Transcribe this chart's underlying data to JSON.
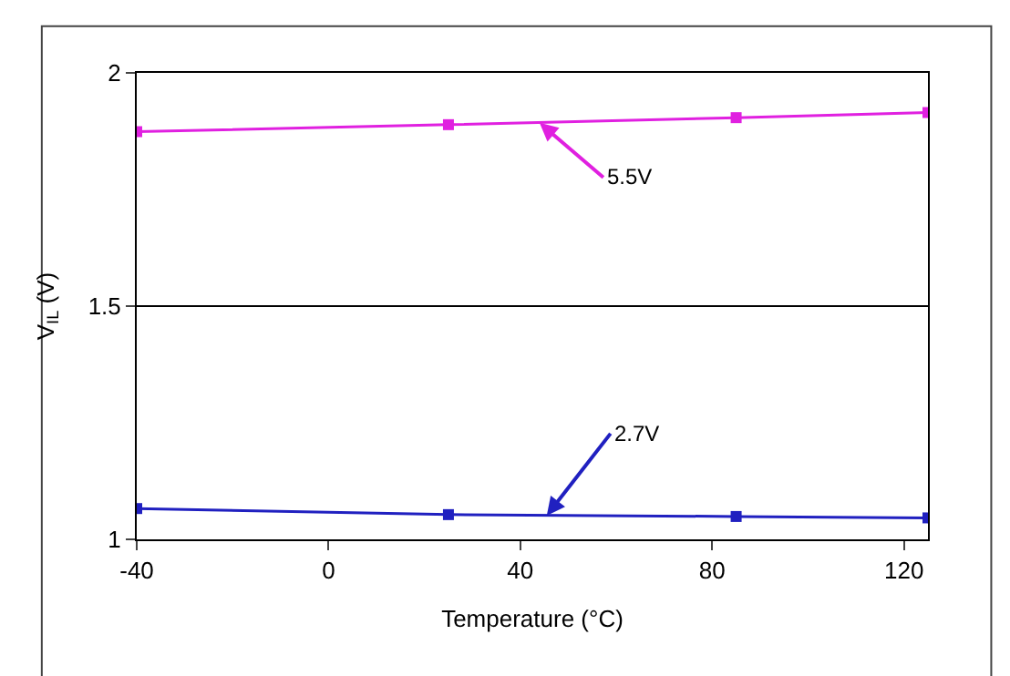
{
  "chart_data": {
    "type": "line",
    "xlabel": "Temperature (°C)",
    "ylabel": "V$_{IL}$ (V)",
    "x": [
      -40,
      25,
      85,
      125
    ],
    "series": [
      {
        "color": "#e020e0",
        "values": [
          1.874,
          1.889,
          1.904,
          1.915
        ]
      },
      {
        "color": "#2020c0",
        "values": [
          1.066,
          1.053,
          1.049,
          1.046
        ]
      }
    ],
    "xlim": [
      -40,
      125
    ],
    "xticks": [
      -40,
      0,
      40,
      80,
      120
    ],
    "ylim": [
      1,
      2
    ],
    "yticks": [
      1,
      1.5,
      2
    ],
    "grid": "y",
    "marker": "square",
    "line_style": "solid",
    "annotations": [
      {
        "text": "5.5V",
        "x": 44,
        "y": 1.893
      },
      {
        "text": "2.7V",
        "x": 45.5,
        "y": 1.051
      }
    ]
  }
}
